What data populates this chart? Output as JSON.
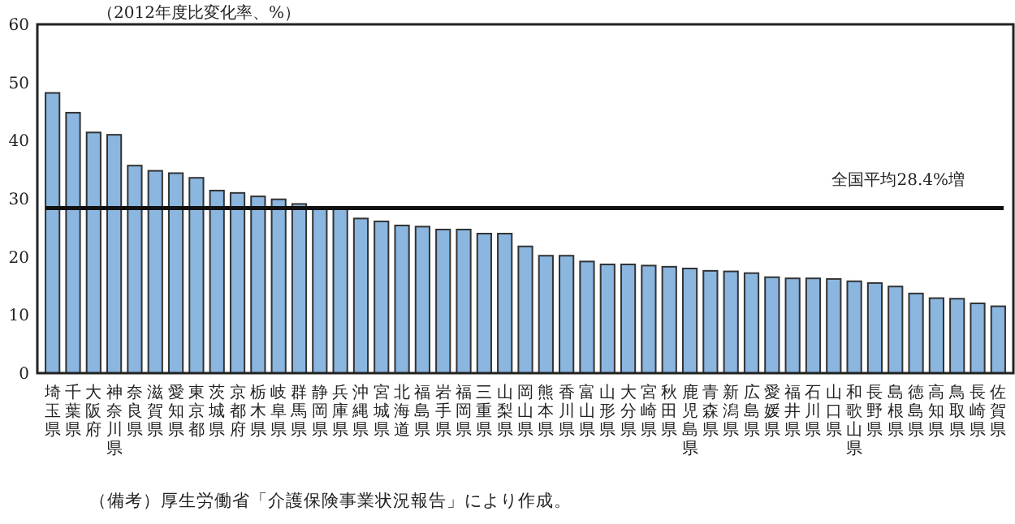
{
  "chart_data": {
    "type": "bar",
    "ylabel": "（2012年度比変化率、%）",
    "categories": [
      "埼玉県",
      "千葉県",
      "大阪府",
      "神奈川県",
      "奈良県",
      "滋賀県",
      "愛知県",
      "東京都",
      "茨城県",
      "京都府",
      "栃木県",
      "岐阜県",
      "群馬県",
      "静岡県",
      "兵庫県",
      "沖縄県",
      "宮城県",
      "北海道",
      "福島県",
      "岩手県",
      "福岡県",
      "三重県",
      "山梨県",
      "岡山県",
      "熊本県",
      "香川県",
      "富山県",
      "山形県",
      "大分県",
      "宮崎県",
      "秋田県",
      "鹿児島県",
      "青森県",
      "新潟県",
      "広島県",
      "愛媛県",
      "福井県",
      "石川県",
      "山口県",
      "和歌山県",
      "長野県",
      "島根県",
      "徳島県",
      "高知県",
      "鳥取県",
      "長崎県",
      "佐賀県"
    ],
    "values": [
      48.2,
      44.8,
      41.4,
      41.0,
      35.7,
      34.8,
      34.4,
      33.6,
      31.4,
      31.0,
      30.4,
      29.9,
      29.1,
      28.3,
      28.2,
      26.6,
      26.1,
      25.4,
      25.2,
      24.7,
      24.7,
      24.0,
      24.0,
      21.8,
      20.2,
      20.2,
      19.2,
      18.7,
      18.7,
      18.5,
      18.3,
      18.0,
      17.6,
      17.5,
      17.2,
      16.5,
      16.3,
      16.3,
      16.2,
      15.8,
      15.5,
      14.9,
      13.7,
      12.9,
      12.8,
      12.0,
      11.5
    ],
    "color": "#8ab6e0",
    "ylim": [
      0,
      60
    ],
    "yticks": [
      0,
      10,
      20,
      30,
      40,
      50,
      60
    ],
    "ref_lines": [
      {
        "axis": "y",
        "value": 28.4,
        "label": "全国平均28.4%増"
      }
    ],
    "annotations": [
      "（備考）厚生労働省「介護保険事業状況報告」により作成。"
    ]
  }
}
